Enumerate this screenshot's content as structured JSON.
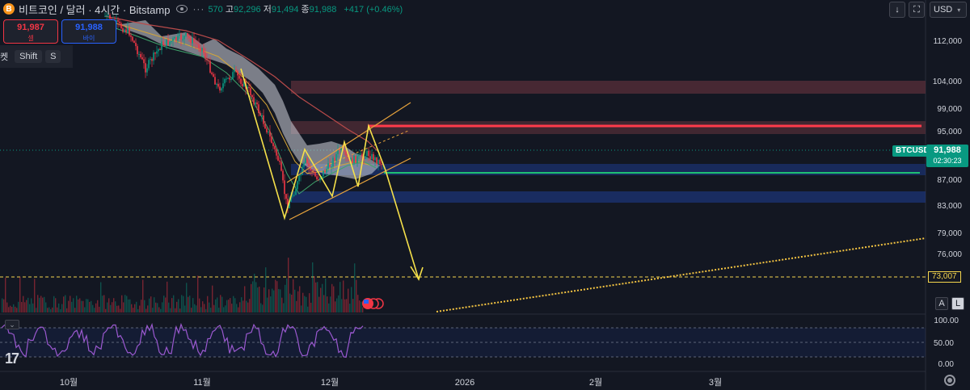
{
  "header": {
    "logo_letter": "B",
    "title": "비트코인 / 달러 · 4시간 · Bitstamp",
    "more_glyph": "···",
    "open_value": "570",
    "high_label": "고",
    "high_value": "92,296",
    "low_label": "저",
    "low_value": "91,494",
    "close_label": "종",
    "close_value": "91,988",
    "change": "+417 (+0.46%)"
  },
  "trade": {
    "sell_price": "91,987",
    "sell_label": "셀",
    "buy_price": "91,988",
    "buy_label": "바이"
  },
  "shortcut": {
    "prefix": "켓",
    "key1": "Shift",
    "key2": "S"
  },
  "toolbar": {
    "download_glyph": "↓",
    "fullscreen_glyph": "⛶",
    "currency": "USD",
    "currency_chevron": "▾"
  },
  "price_scale": {
    "ticks": [
      "112,000",
      "104,000",
      "99,000",
      "95,000",
      "87,000",
      "83,000",
      "79,000",
      "76,000"
    ]
  },
  "current_price": {
    "symbol": "BTCUSD",
    "price": "91,988",
    "countdown": "02:30:23"
  },
  "alert_price": "73,007",
  "scale_mode": {
    "auto": "A",
    "log": "L"
  },
  "oscillator": {
    "ticks": [
      "100.00",
      "50.00",
      "0.00"
    ]
  },
  "time_axis": {
    "labels": [
      "10월",
      "11월",
      "12월",
      "2026",
      "2월",
      "3월"
    ]
  },
  "branding": {
    "logo": "17"
  },
  "colors": {
    "background": "#131722",
    "up": "#089981",
    "down": "#f23645",
    "projection": "#f5e04a",
    "channel": "#e8a33c",
    "resistance_line": "#ff3b4b",
    "support_line": "#1fbf73",
    "blue_zone": "#1e3a8a",
    "oscillator": "#9b59d0"
  }
}
